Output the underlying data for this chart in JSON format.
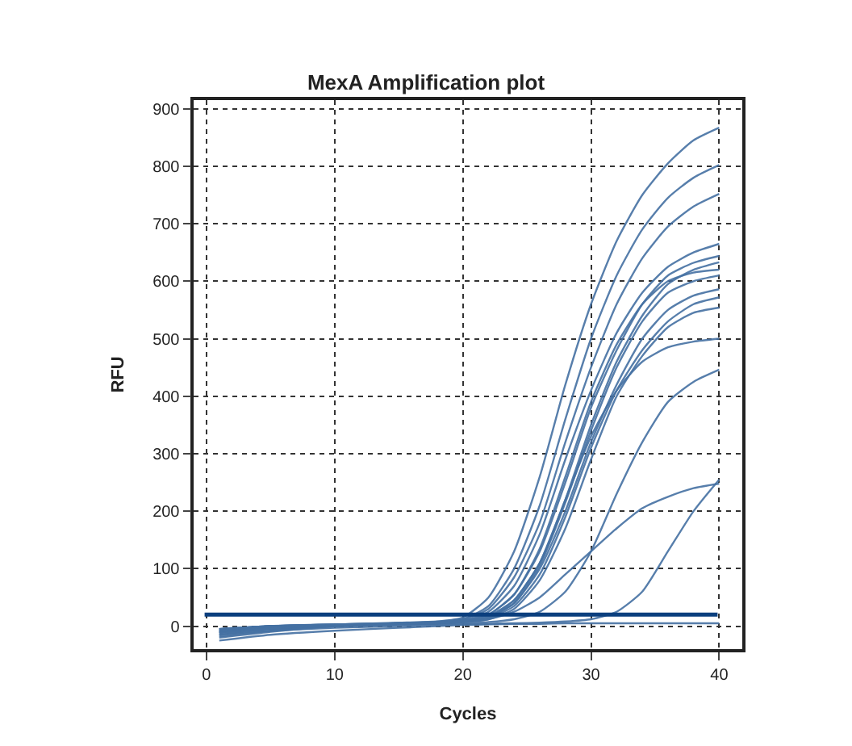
{
  "chart_data": {
    "type": "line",
    "title": "MexA Amplification plot",
    "xlabel": "Cycles",
    "ylabel": "RFU",
    "x": [
      1,
      5,
      10,
      15,
      18,
      20,
      22,
      24,
      26,
      28,
      30,
      32,
      34,
      36,
      38,
      40
    ],
    "series": [
      {
        "color": "#4571a3",
        "values": [
          -5,
          0,
          3,
          5,
          8,
          15,
          50,
          130,
          260,
          420,
          560,
          670,
          750,
          805,
          845,
          867
        ]
      },
      {
        "color": "#4571a3",
        "values": [
          -10,
          -3,
          2,
          5,
          7,
          12,
          35,
          100,
          210,
          360,
          500,
          610,
          690,
          745,
          780,
          802
        ]
      },
      {
        "color": "#4571a3",
        "values": [
          -8,
          0,
          3,
          6,
          8,
          12,
          30,
          85,
          180,
          320,
          450,
          560,
          640,
          695,
          730,
          752
        ]
      },
      {
        "color": "#4571a3",
        "values": [
          -20,
          -10,
          0,
          4,
          6,
          10,
          25,
          70,
          160,
          290,
          410,
          510,
          580,
          625,
          650,
          665
        ]
      },
      {
        "color": "#4571a3",
        "values": [
          -5,
          0,
          3,
          5,
          7,
          10,
          20,
          55,
          130,
          250,
          380,
          480,
          560,
          610,
          632,
          644
        ]
      },
      {
        "color": "#4571a3",
        "values": [
          -15,
          -5,
          0,
          4,
          6,
          9,
          18,
          45,
          110,
          220,
          350,
          460,
          540,
          595,
          620,
          633
        ]
      },
      {
        "color": "#4571a3",
        "values": [
          -10,
          -2,
          2,
          5,
          6,
          8,
          15,
          40,
          100,
          200,
          320,
          420,
          500,
          550,
          575,
          586
        ]
      },
      {
        "color": "#4571a3",
        "values": [
          -5,
          0,
          3,
          5,
          6,
          8,
          14,
          35,
          90,
          190,
          310,
          410,
          480,
          530,
          560,
          572
        ]
      },
      {
        "color": "#4571a3",
        "values": [
          -12,
          -5,
          0,
          3,
          5,
          7,
          12,
          30,
          80,
          170,
          290,
          400,
          470,
          520,
          545,
          554
        ]
      },
      {
        "color": "#4571a3",
        "values": [
          -8,
          0,
          2,
          4,
          5,
          7,
          15,
          45,
          110,
          220,
          330,
          410,
          460,
          485,
          495,
          500
        ]
      },
      {
        "color": "#4571a3",
        "values": [
          -10,
          -4,
          0,
          3,
          4,
          5,
          7,
          12,
          25,
          60,
          130,
          230,
          320,
          390,
          425,
          446
        ]
      },
      {
        "color": "#4571a3",
        "values": [
          -6,
          0,
          2,
          4,
          5,
          7,
          12,
          25,
          50,
          90,
          130,
          170,
          205,
          225,
          240,
          248
        ]
      },
      {
        "color": "#4571a3",
        "values": [
          -15,
          -8,
          -3,
          0,
          2,
          3,
          4,
          5,
          6,
          8,
          12,
          25,
          60,
          130,
          200,
          255
        ]
      },
      {
        "color": "#4571a3",
        "values": [
          -18,
          -8,
          0,
          3,
          5,
          8,
          16,
          40,
          105,
          215,
          340,
          450,
          530,
          580,
          600,
          610
        ]
      },
      {
        "color": "#4571a3",
        "values": [
          -12,
          -4,
          1,
          4,
          6,
          9,
          20,
          55,
          135,
          260,
          390,
          490,
          560,
          600,
          615,
          620
        ]
      },
      {
        "color": "#4571a3",
        "values": [
          -25,
          -15,
          -8,
          -3,
          0,
          2,
          3,
          4,
          4,
          5,
          5,
          5,
          5,
          5,
          5,
          5
        ]
      }
    ],
    "ref_lines": [
      {
        "axis": "y",
        "value": 20,
        "color": "#0b3f7e"
      }
    ],
    "xlim": [
      -1,
      41.8
    ],
    "ylim": [
      -40,
      915
    ],
    "xticks": [
      0,
      10,
      20,
      30,
      40
    ],
    "yticks": [
      0,
      100,
      200,
      300,
      400,
      500,
      600,
      700,
      800,
      900
    ],
    "grid": true,
    "marker": "none",
    "line_style": "solid"
  }
}
